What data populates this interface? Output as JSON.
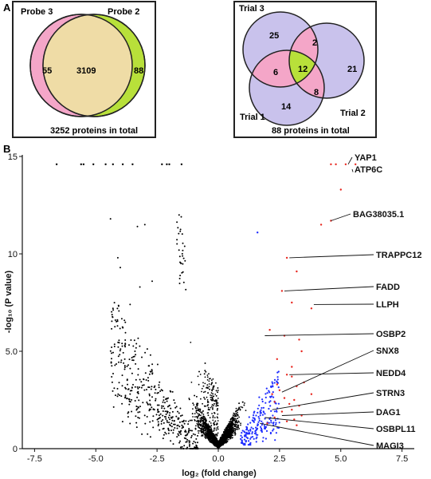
{
  "panels": {
    "a": "A",
    "b": "B"
  },
  "venn2": {
    "left_label": "Probe 3",
    "right_label": "Probe 2",
    "left_only": "55",
    "overlap": "3109",
    "right_only": "88",
    "caption": "3252 proteins in total",
    "colors": {
      "left": "#f4a6c8",
      "right": "#b8e03a",
      "overlap": "#efdca6",
      "border": "#222222"
    }
  },
  "venn3": {
    "labels": {
      "top": "Trial 3",
      "right": "Trial 2",
      "bottom": "Trial 1"
    },
    "values": {
      "t3_only": "25",
      "t3_t2": "2",
      "t2_only": "21",
      "t3_t1": "6",
      "all": "12",
      "t1_t2": "8",
      "t1_only": "14"
    },
    "caption": "88 proteins in total",
    "colors": {
      "single": "#c9c2ec",
      "pair": "#f4a6c8",
      "triple": "#b8e03a",
      "border": "#222222"
    }
  },
  "chart_data": {
    "type": "scatter",
    "xlabel": "log₂ (fold change)",
    "ylabel": "-log₁₀ (P value)",
    "xlim": [
      -8,
      8
    ],
    "ylim": [
      0,
      15
    ],
    "xticks": [
      "-7.5",
      "-5.0",
      "-2.5",
      "0.0",
      "2.5",
      "5.0",
      "7.5"
    ],
    "yticks": [
      "0",
      "5.0",
      "10",
      "15"
    ],
    "colors": {
      "nonsig": "#000000",
      "blue": "#1f2dff",
      "red": "#e8241c"
    },
    "red_points": [
      [
        4.6,
        14.6
      ],
      [
        4.8,
        14.6
      ],
      [
        5.2,
        14.6
      ],
      [
        5.6,
        14.6
      ],
      [
        5.0,
        13.3
      ],
      [
        4.6,
        11.7
      ],
      [
        4.2,
        11.5
      ],
      [
        2.8,
        9.8
      ],
      [
        3.2,
        9.1
      ],
      [
        2.6,
        8.1
      ],
      [
        3.0,
        7.5
      ],
      [
        3.8,
        7.2
      ],
      [
        2.1,
        6.1
      ],
      [
        2.7,
        5.8
      ],
      [
        3.3,
        5.6
      ],
      [
        3.4,
        5.0
      ],
      [
        2.4,
        4.6
      ],
      [
        3.0,
        4.2
      ],
      [
        2.8,
        3.8
      ],
      [
        3.0,
        3.7
      ],
      [
        3.5,
        3.4
      ],
      [
        2.4,
        3.3
      ],
      [
        3.2,
        3.2
      ],
      [
        2.5,
        3.0
      ],
      [
        2.2,
        2.8
      ],
      [
        2.7,
        2.6
      ],
      [
        3.1,
        2.5
      ],
      [
        3.8,
        2.8
      ],
      [
        2.3,
        2.4
      ],
      [
        2.9,
        2.3
      ],
      [
        3.3,
        2.2
      ],
      [
        3.0,
        2.0
      ],
      [
        2.6,
        1.9
      ],
      [
        3.4,
        1.7
      ],
      [
        3.1,
        1.5
      ],
      [
        2.3,
        1.6
      ],
      [
        2.8,
        1.4
      ],
      [
        2.0,
        1.3
      ],
      [
        3.2,
        1.2
      ]
    ],
    "top_black_points": [
      [
        -6.6,
        14.6
      ],
      [
        -5.6,
        14.6
      ],
      [
        -5.1,
        14.6
      ],
      [
        -4.3,
        14.6
      ],
      [
        -3.9,
        14.6
      ],
      [
        -3.5,
        14.6
      ],
      [
        -2.3,
        14.6
      ],
      [
        -2.1,
        14.6
      ],
      [
        -2.0,
        14.6
      ],
      [
        -1.5,
        14.6
      ],
      [
        -5.5,
        14.6
      ],
      [
        -4.6,
        14.6
      ]
    ],
    "annotations": [
      {
        "label": "YAP1",
        "x": 5.3,
        "y": 14.6
      },
      {
        "label": "ATP6C",
        "x": 5.5,
        "y": 14.2
      },
      {
        "label": "BAG38035.1",
        "x": 4.6,
        "y": 11.7
      },
      {
        "label": "TRAPPC12",
        "x": 2.9,
        "y": 9.8
      },
      {
        "label": "FADD",
        "x": 2.7,
        "y": 8.1
      },
      {
        "label": "LLPH",
        "x": 3.9,
        "y": 7.4
      },
      {
        "label": "OSBP2",
        "x": 1.9,
        "y": 5.8
      },
      {
        "label": "SNX8",
        "x": 2.6,
        "y": 2.9
      },
      {
        "label": "NEDD4",
        "x": 2.9,
        "y": 3.8
      },
      {
        "label": "STRN3",
        "x": 2.2,
        "y": 2.0
      },
      {
        "label": "DAG1",
        "x": 2.6,
        "y": 1.7
      },
      {
        "label": "OSBPL11",
        "x": 1.9,
        "y": 1.6
      },
      {
        "label": "MAGI3",
        "x": 1.7,
        "y": 1.3
      }
    ]
  }
}
